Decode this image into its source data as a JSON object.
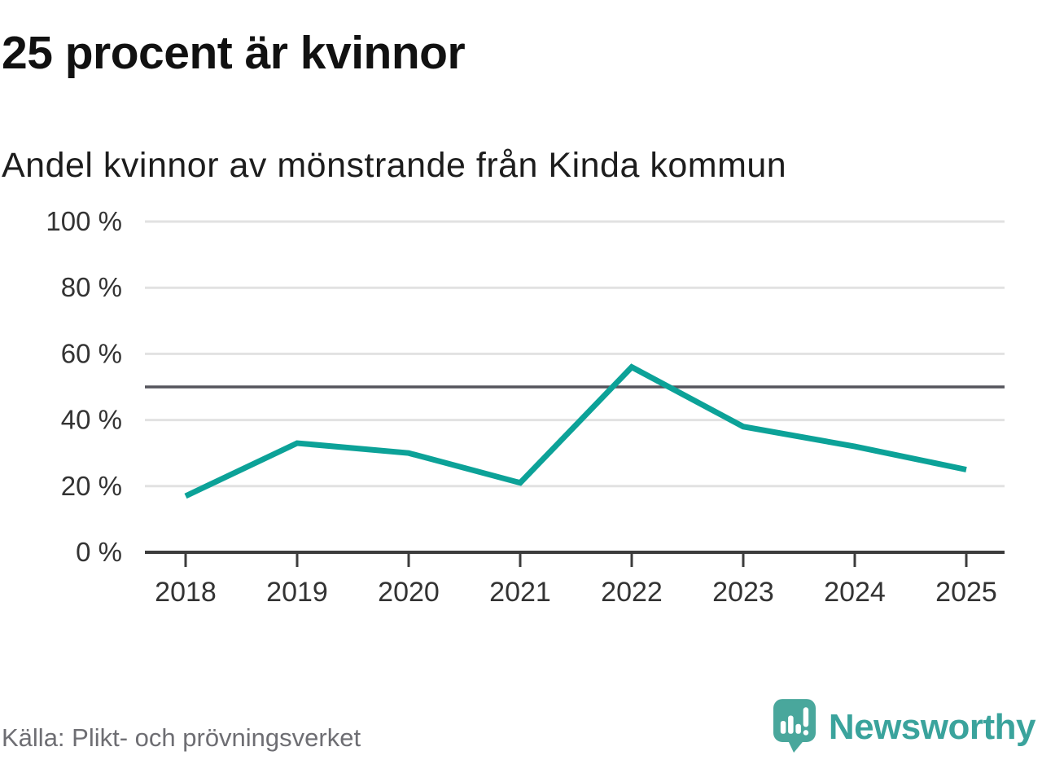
{
  "header": {
    "title": "25 procent är kvinnor",
    "subtitle": "Andel kvinnor av mönstrande från Kinda kommun"
  },
  "chart_data": {
    "type": "line",
    "title": "25 procent är kvinnor",
    "subtitle": "Andel kvinnor av mönstrande från Kinda kommun",
    "source": "Källa: Plikt- och prövningsverket",
    "categories": [
      "2018",
      "2019",
      "2020",
      "2021",
      "2022",
      "2023",
      "2024",
      "2025"
    ],
    "series": [
      {
        "name": "Andel kvinnor av mönstrande",
        "color": "#0ca298",
        "values": [
          17,
          33,
          30,
          21,
          56,
          38,
          32,
          25
        ]
      }
    ],
    "xlabel": "",
    "ylabel": "",
    "ylim": [
      0,
      100
    ],
    "y_ticks": [
      0,
      20,
      40,
      60,
      80,
      100
    ],
    "y_tick_labels": [
      "0 %",
      "20 %",
      "40 %",
      "60 %",
      "80 %",
      "100 %"
    ],
    "reference_line": {
      "value": 50,
      "color": "#55555d"
    },
    "grid": "horizontal",
    "legend": "none"
  },
  "footer": {
    "source": "Källa: Plikt- och prövningsverket",
    "brand": "Newsworthy"
  },
  "colors": {
    "accent_teal": "#0ca298",
    "grid": "#e2e2e2",
    "reference_line": "#55555d",
    "axis": "#3c3c3c",
    "tick_label": "#333333",
    "title": "#111111",
    "subtitle": "#1d1d1d",
    "source_text": "#6e6e73",
    "brand_teal": "#3aa39c",
    "logo_mark": "#49a79c",
    "logo_glyph": "#ffffff"
  }
}
